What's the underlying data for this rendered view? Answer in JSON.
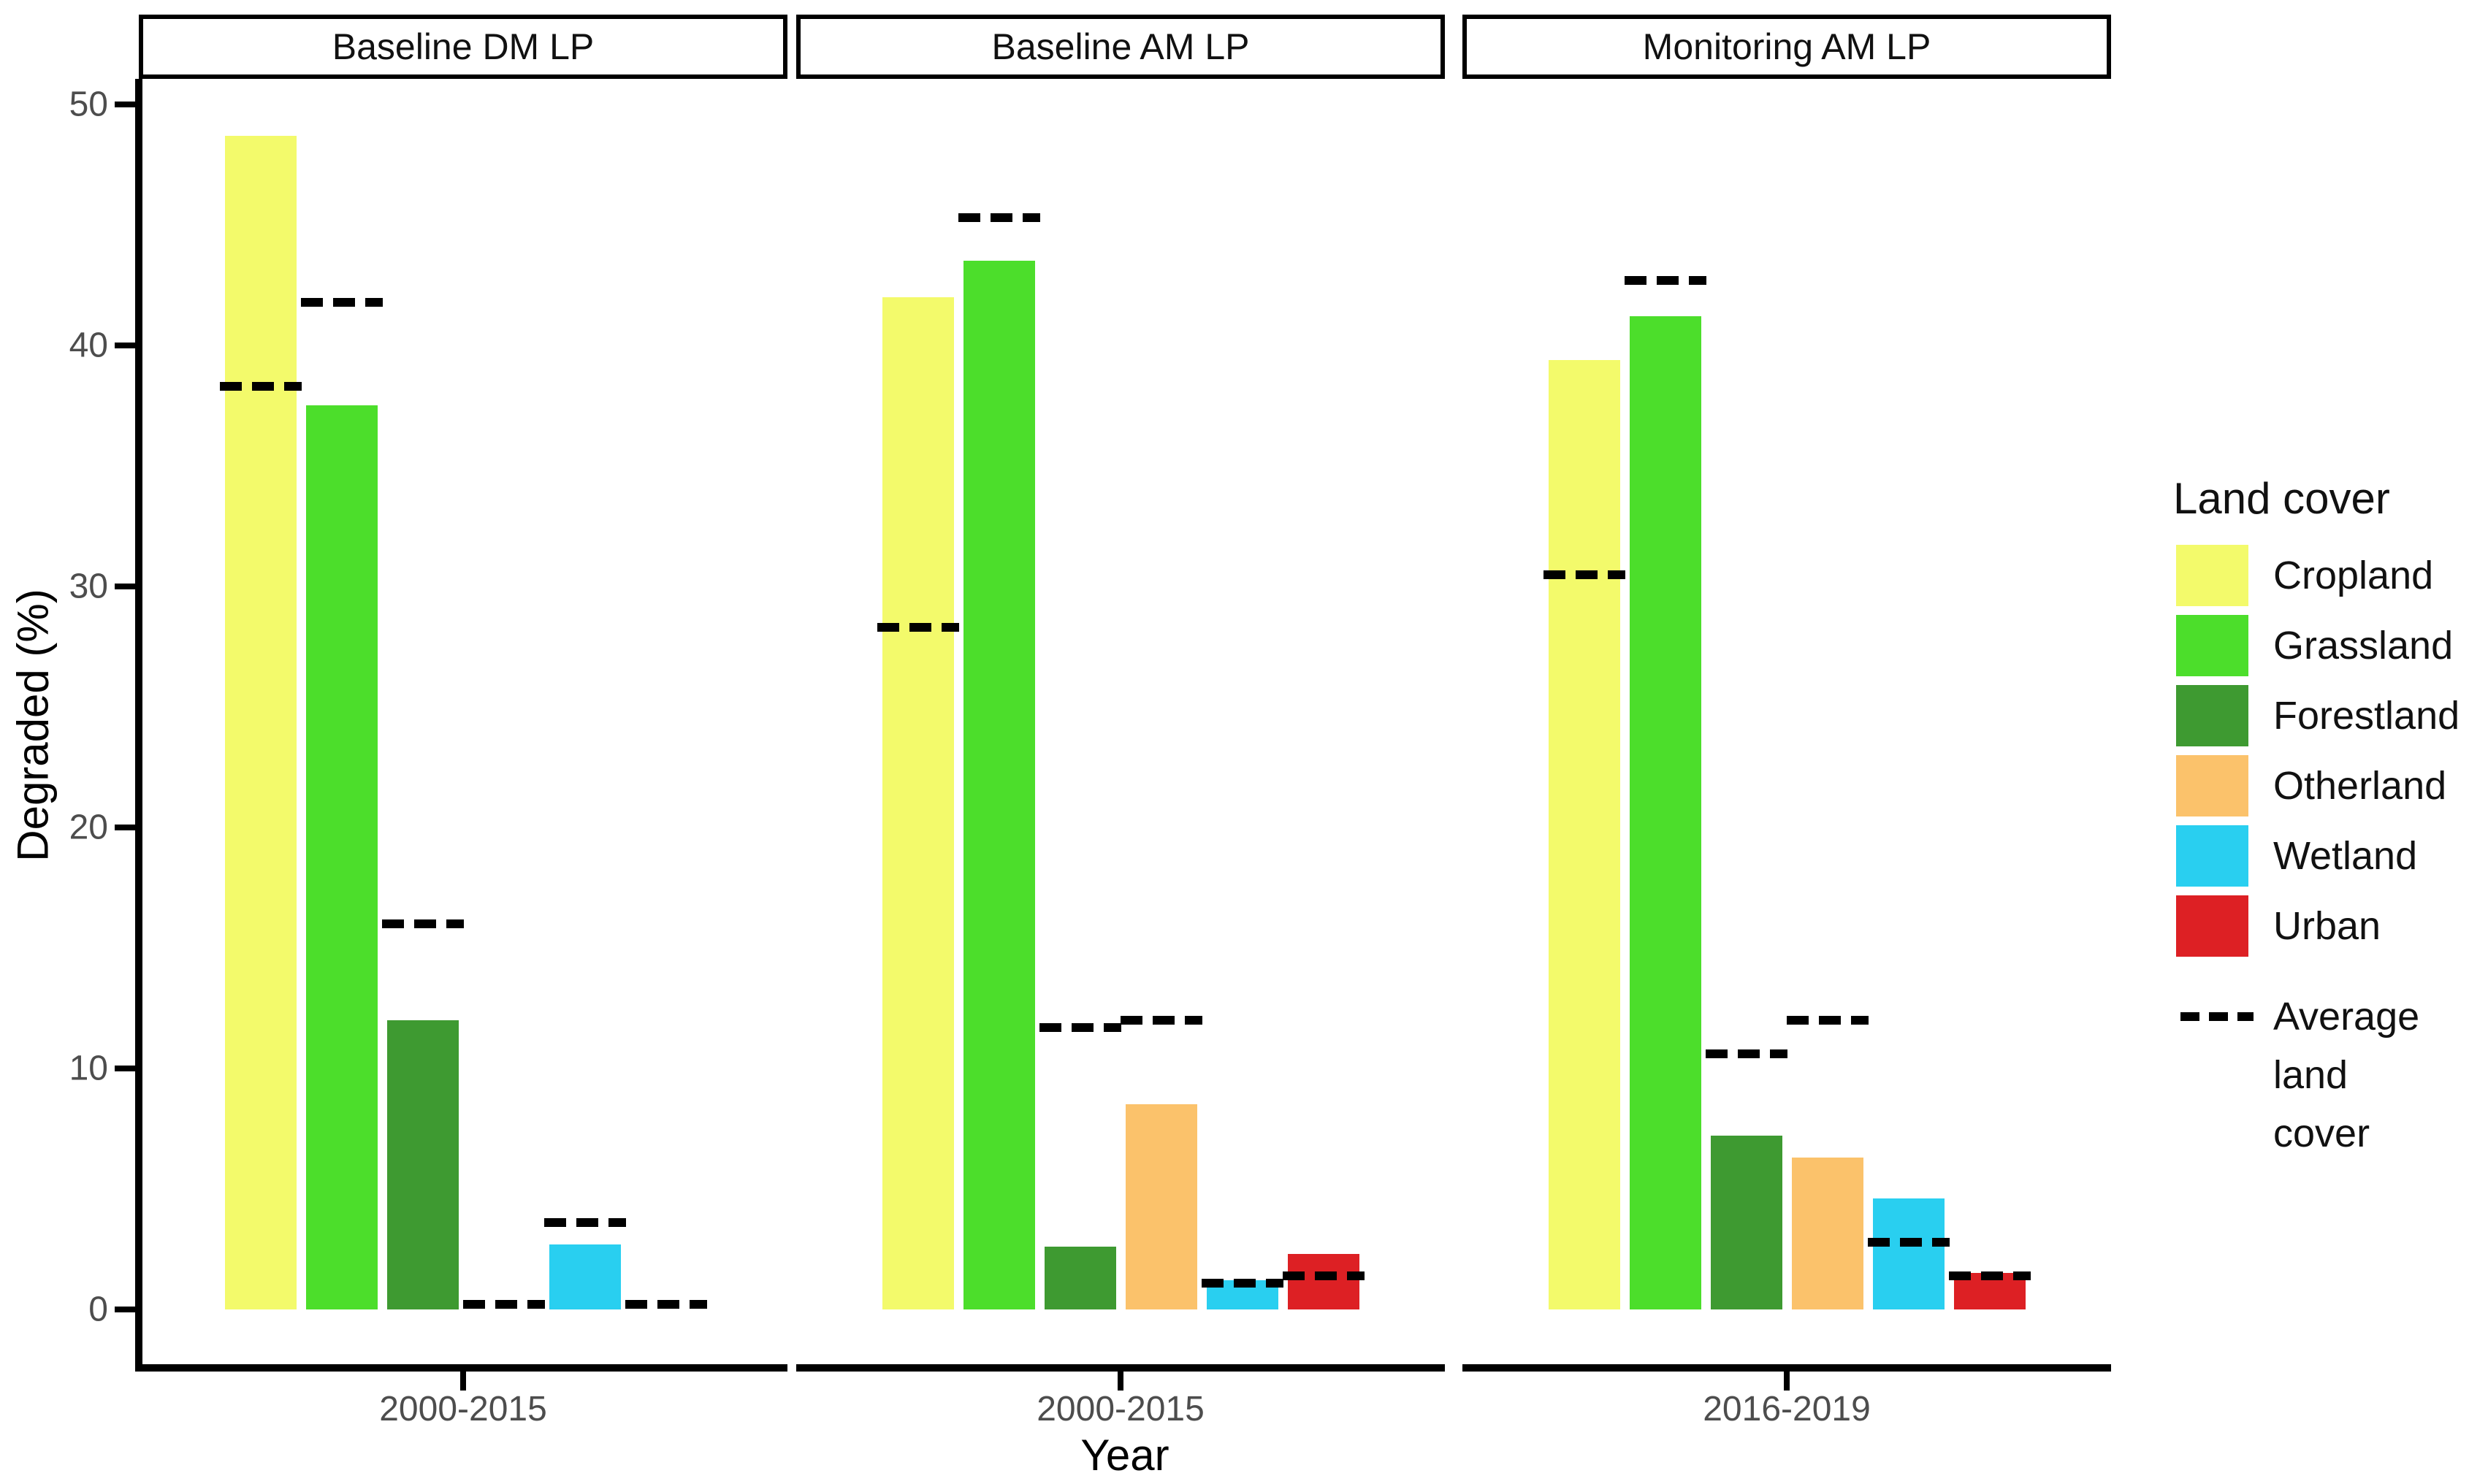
{
  "figure": {
    "background": "#ffffff"
  },
  "y_axis": {
    "title": "Degraded (%)",
    "tick_labels": [
      "0",
      "10",
      "20",
      "30",
      "40",
      "50"
    ]
  },
  "x_axis": {
    "title": "Year"
  },
  "legend": {
    "title": "Land cover",
    "average_key_label": "Average land cover",
    "average_key_lines": [
      "Average",
      "land",
      "cover"
    ]
  },
  "colors": {
    "cropland": "#F3FA6B",
    "grassland": "#4CDE2B",
    "forestland": "#3E9A31",
    "otherland": "#FBC26B",
    "wetland": "#29CFF0",
    "urban": "#DD2024",
    "average_dash": "#000000",
    "axis": "#000000",
    "tick_label": "#4D4D4D"
  },
  "chart_data": {
    "type": "bar",
    "title": "",
    "ylabel": "Degraded (%)",
    "xlabel": "Year",
    "ylim": [
      0,
      50
    ],
    "yticks": [
      0,
      10,
      20,
      30,
      40,
      50
    ],
    "grid": false,
    "legend_position": "right",
    "facets": [
      {
        "title": "Baseline DM LP",
        "x_label": "2000-2015"
      },
      {
        "title": "Baseline AM LP",
        "x_label": "2000-2015"
      },
      {
        "title": "Monitoring AM LP",
        "x_label": "2016-2019"
      }
    ],
    "categories": [
      "Cropland",
      "Grassland",
      "Forestland",
      "Otherland",
      "Wetland",
      "Urban"
    ],
    "series": [
      {
        "name": "Cropland",
        "color": "#F3FA6B",
        "degraded_pct": [
          48.7,
          42.0,
          39.4
        ],
        "average_pct": [
          38.3,
          28.3,
          30.5
        ]
      },
      {
        "name": "Grassland",
        "color": "#4CDE2B",
        "degraded_pct": [
          37.5,
          43.5,
          41.2
        ],
        "average_pct": [
          41.8,
          45.3,
          42.7
        ]
      },
      {
        "name": "Forestland",
        "color": "#3E9A31",
        "degraded_pct": [
          12.0,
          2.6,
          7.2
        ],
        "average_pct": [
          16.0,
          11.7,
          10.6
        ]
      },
      {
        "name": "Otherland",
        "color": "#FBC26B",
        "degraded_pct": [
          0.0,
          8.5,
          6.3
        ],
        "average_pct": [
          0.2,
          12.0,
          12.0
        ]
      },
      {
        "name": "Wetland",
        "color": "#29CFF0",
        "degraded_pct": [
          2.7,
          1.2,
          4.6
        ],
        "average_pct": [
          3.6,
          1.1,
          2.8
        ]
      },
      {
        "name": "Urban",
        "color": "#DD2024",
        "degraded_pct": [
          0.0,
          2.3,
          1.5
        ],
        "average_pct": [
          0.2,
          1.4,
          1.4
        ]
      }
    ]
  }
}
